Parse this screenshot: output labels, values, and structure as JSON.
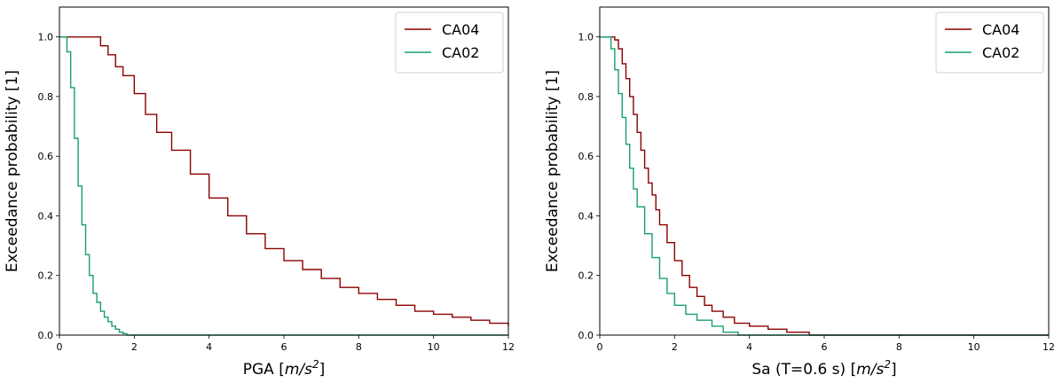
{
  "chart_data": [
    {
      "type": "line",
      "step": true,
      "xlabel": "PGA [m/s²]",
      "xlabel_parts": [
        "PGA [",
        "m/s",
        "2",
        "]"
      ],
      "ylabel": "Exceedance probability [1]",
      "xlim": [
        0,
        12
      ],
      "ylim": [
        0,
        1.1
      ],
      "xticks": [
        "0",
        "2",
        "4",
        "6",
        "8",
        "10",
        "12"
      ],
      "yticks": [
        "0.0",
        "0.2",
        "0.4",
        "0.6",
        "0.8",
        "1.0"
      ],
      "grid": false,
      "legend_position": "top-right",
      "series": [
        {
          "name": "CA04",
          "color": "#8b0000",
          "x": [
            0,
            0.9,
            1.1,
            1.3,
            1.5,
            1.7,
            2.0,
            2.3,
            2.6,
            3.0,
            3.5,
            4.0,
            4.5,
            5.0,
            5.5,
            6.0,
            6.5,
            7.0,
            7.5,
            8.0,
            8.5,
            9.0,
            9.5,
            10.0,
            10.5,
            11.0,
            11.5,
            12.0
          ],
          "y": [
            1.0,
            1.0,
            0.97,
            0.94,
            0.9,
            0.87,
            0.81,
            0.74,
            0.68,
            0.62,
            0.54,
            0.46,
            0.4,
            0.34,
            0.29,
            0.25,
            0.22,
            0.19,
            0.16,
            0.14,
            0.12,
            0.1,
            0.08,
            0.07,
            0.06,
            0.05,
            0.04,
            0.03
          ]
        },
        {
          "name": "CA02",
          "color": "#17a06a",
          "x": [
            0,
            0.12,
            0.2,
            0.3,
            0.4,
            0.5,
            0.6,
            0.7,
            0.8,
            0.9,
            1.0,
            1.1,
            1.2,
            1.3,
            1.4,
            1.5,
            1.6,
            1.7,
            1.8,
            12.0
          ],
          "y": [
            1.0,
            1.0,
            0.95,
            0.83,
            0.66,
            0.5,
            0.37,
            0.27,
            0.2,
            0.14,
            0.11,
            0.08,
            0.06,
            0.045,
            0.03,
            0.02,
            0.01,
            0.005,
            0.0,
            0.0
          ]
        }
      ]
    },
    {
      "type": "line",
      "step": true,
      "xlabel": "Sa (T=0.6 s) [m/s²]",
      "xlabel_parts": [
        "Sa (T=0.6 s) [",
        "m/s",
        "2",
        "]"
      ],
      "ylabel": "Exceedance probability [1]",
      "xlim": [
        0,
        12
      ],
      "ylim": [
        0,
        1.1
      ],
      "xticks": [
        "0",
        "2",
        "4",
        "6",
        "8",
        "10",
        "12"
      ],
      "yticks": [
        "0.0",
        "0.2",
        "0.4",
        "0.6",
        "0.8",
        "1.0"
      ],
      "grid": false,
      "legend_position": "top-right",
      "series": [
        {
          "name": "CA04",
          "color": "#8b0000",
          "x": [
            0,
            0.3,
            0.4,
            0.5,
            0.6,
            0.7,
            0.8,
            0.9,
            1.0,
            1.1,
            1.2,
            1.3,
            1.4,
            1.5,
            1.6,
            1.8,
            2.0,
            2.2,
            2.4,
            2.6,
            2.8,
            3.0,
            3.3,
            3.6,
            4.0,
            4.5,
            5.0,
            5.6,
            12.0
          ],
          "y": [
            1.0,
            1.0,
            0.99,
            0.96,
            0.91,
            0.86,
            0.8,
            0.74,
            0.68,
            0.62,
            0.56,
            0.51,
            0.47,
            0.42,
            0.37,
            0.31,
            0.25,
            0.2,
            0.16,
            0.13,
            0.1,
            0.08,
            0.06,
            0.04,
            0.03,
            0.02,
            0.01,
            0.0,
            0.0
          ]
        },
        {
          "name": "CA02",
          "color": "#17a06a",
          "x": [
            0,
            0.15,
            0.3,
            0.4,
            0.5,
            0.6,
            0.7,
            0.8,
            0.9,
            1.0,
            1.2,
            1.4,
            1.6,
            1.8,
            2.0,
            2.3,
            2.6,
            3.0,
            3.3,
            3.7,
            12.0
          ],
          "y": [
            1.0,
            1.0,
            0.96,
            0.89,
            0.81,
            0.73,
            0.64,
            0.56,
            0.49,
            0.43,
            0.34,
            0.26,
            0.19,
            0.14,
            0.1,
            0.07,
            0.05,
            0.03,
            0.01,
            0.0,
            0.0
          ]
        }
      ]
    }
  ]
}
